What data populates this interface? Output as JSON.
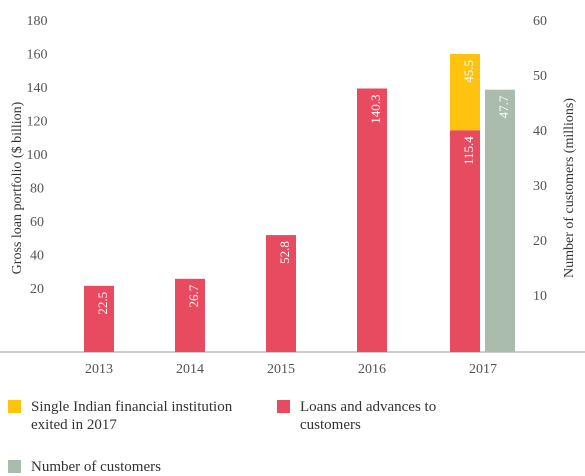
{
  "chart_data": {
    "type": "bar",
    "categories": [
      "2013",
      "2014",
      "2015",
      "2016",
      "2017"
    ],
    "series": [
      {
        "name": "Single Indian financial institution exited in 2017",
        "color": "#ffc20e",
        "values": [
          null,
          null,
          null,
          null,
          45.5
        ]
      },
      {
        "name": "Loans and advances to customers",
        "color": "#e84a5f",
        "values": [
          22.5,
          26.7,
          52.8,
          140.3,
          115.4
        ]
      },
      {
        "name": "Number of customers",
        "color": "#a9bcae",
        "axis": "y2",
        "values": [
          null,
          null,
          null,
          null,
          47.7
        ]
      }
    ],
    "ylabel": "Gross loan portfolio ($ billion)",
    "y2label": "Number of customers (millions)",
    "ylim": [
      -17,
      180
    ],
    "yticks": [
      20,
      40,
      60,
      80,
      100,
      120,
      140,
      160,
      180
    ],
    "y2lim": [
      0,
      60
    ],
    "y2ticks": [
      10,
      20,
      30,
      40,
      50,
      60
    ],
    "stacked": true
  }
}
